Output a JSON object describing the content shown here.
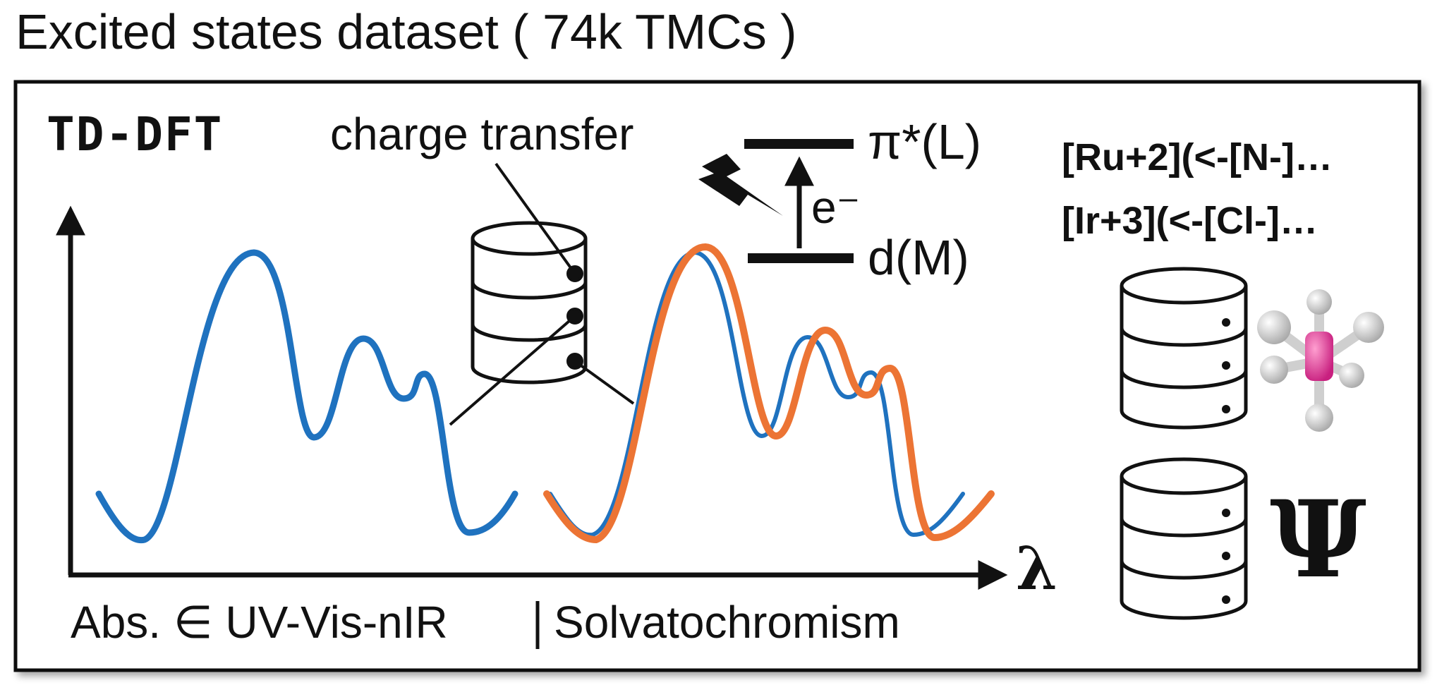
{
  "title": "Excited states dataset ( 74k TMCs )",
  "method_label": "TD-DFT",
  "charge_transfer_label": "charge transfer",
  "orbital_top": "π*(L)",
  "electron_label": "e⁻",
  "orbital_bottom": "d(M)",
  "smiles": [
    "[Ru+2](<-[N-]…",
    "[Ir+3](<-[Cl-]…"
  ],
  "axis_x_symbol": "λ",
  "wavefunction_symbol": "Ψ",
  "footer_left": "Abs. ∈ UV-Vis-nIR",
  "footer_right": "Solvatochromism",
  "colors": {
    "spectrum_blue": "#1f72bf",
    "spectrum_orange": "#ec7434",
    "molecule_metal": "#e0409a",
    "molecule_ligand": "#e2e2e2",
    "frame": "#111111"
  },
  "icons": [
    "database-icon",
    "lightning-icon",
    "molecule-icon"
  ]
}
